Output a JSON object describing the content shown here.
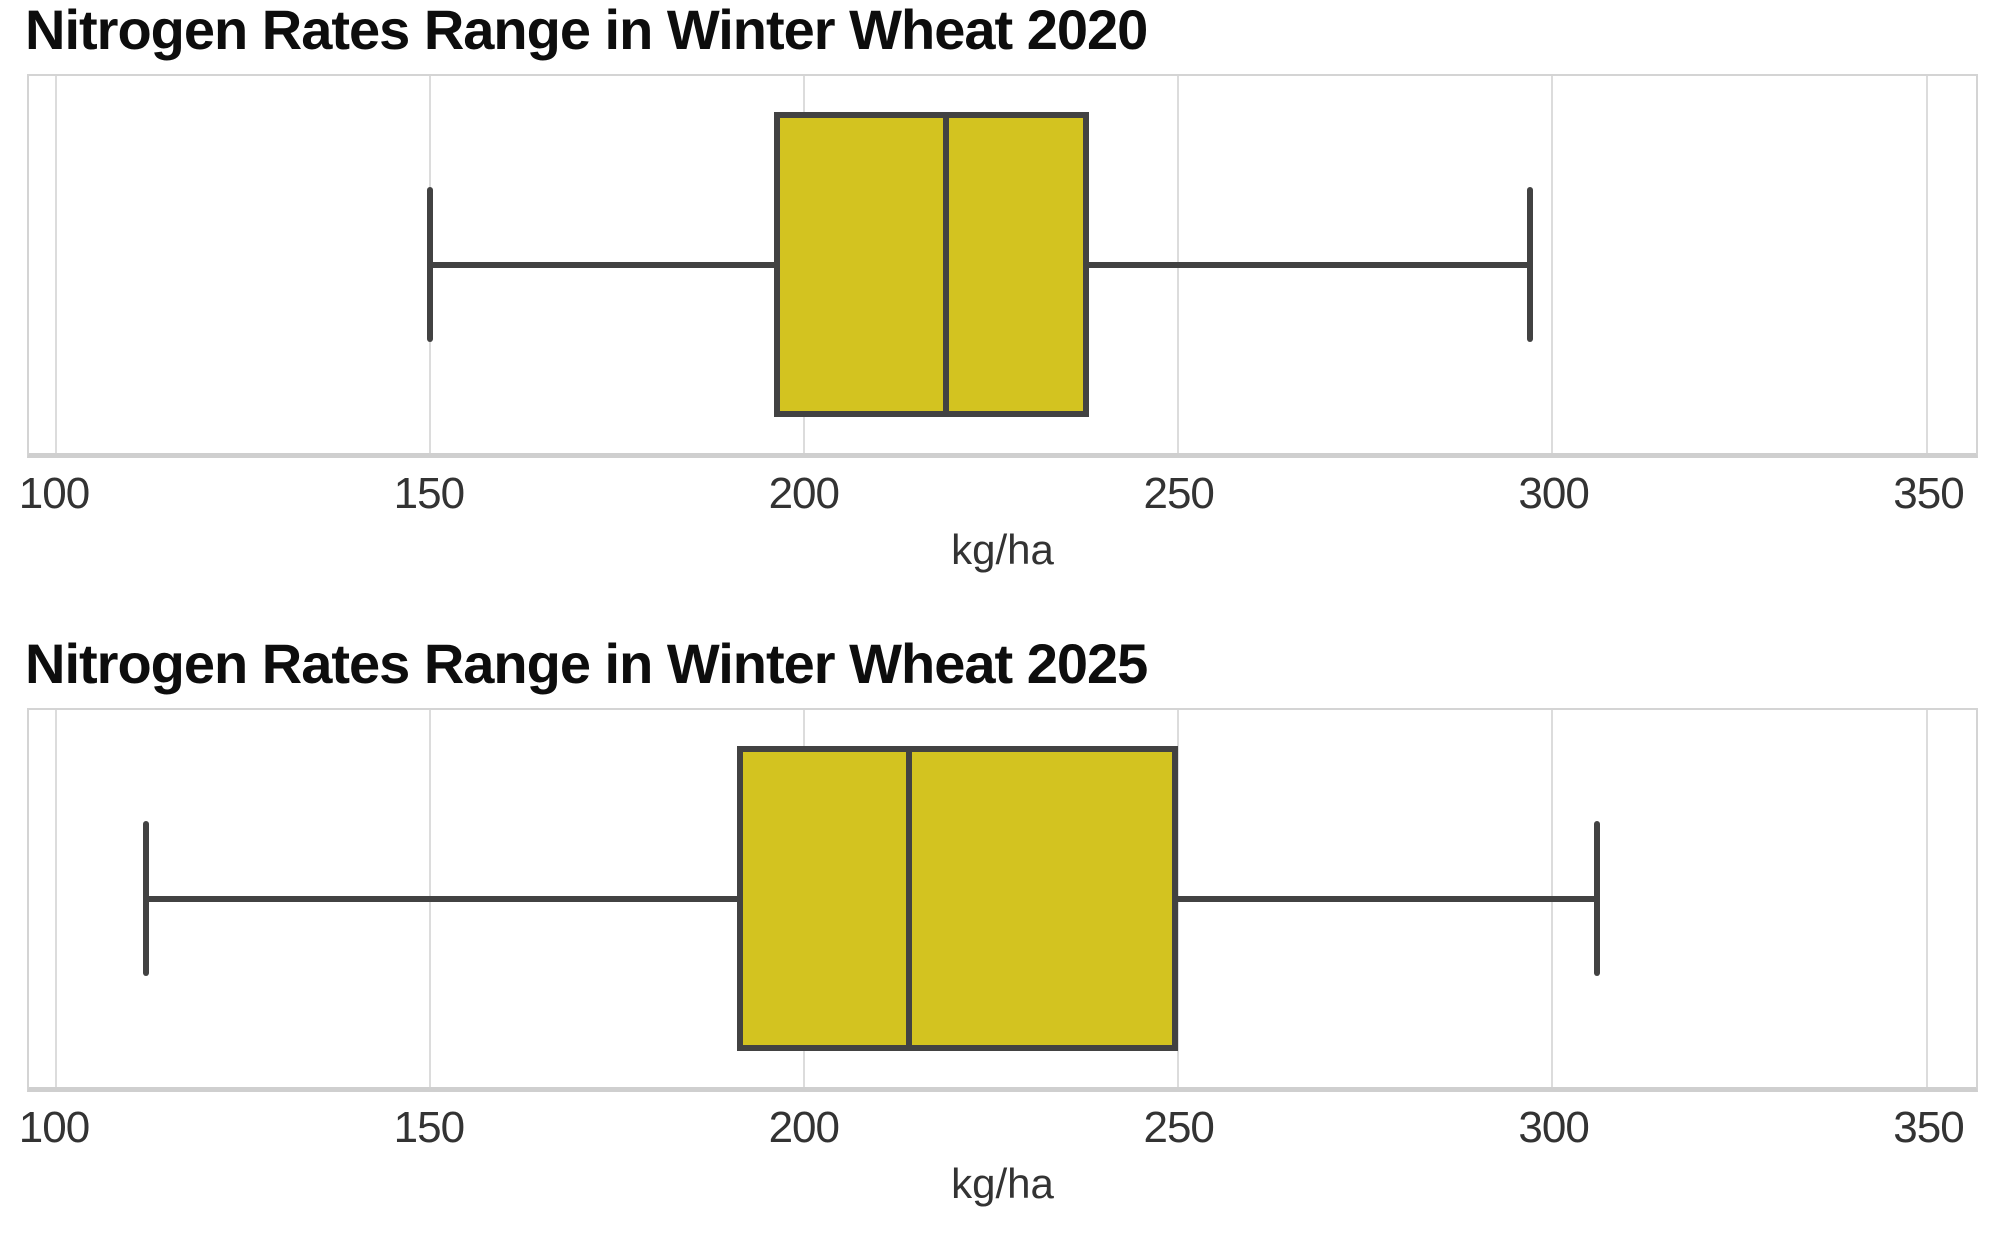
{
  "page": {
    "background": "#ffffff"
  },
  "colors": {
    "box_fill": "#d3c320",
    "box_stroke": "#424242",
    "gridline": "#dcdcdc",
    "plot_frame": "#d4d4d4",
    "axis_line": "#cfcfcf",
    "tick_text": "#333333",
    "title_text": "#0d0d0d"
  },
  "chart_data": [
    {
      "type": "box",
      "orientation": "horizontal",
      "title": "Nitrogen Rates Range in Winter Wheat 2020",
      "xlabel": "kg/ha",
      "xlim": [
        96.4,
        356.6
      ],
      "ticks": [
        100,
        150,
        200,
        250,
        300,
        350
      ],
      "tick_labels": [
        "100",
        "150",
        "200",
        "250",
        "300",
        "350"
      ],
      "grid": true,
      "legend": false,
      "stats": {
        "min": 150,
        "q1": 196,
        "median": 219,
        "q3": 238,
        "max": 297
      }
    },
    {
      "type": "box",
      "orientation": "horizontal",
      "title": "Nitrogen Rates Range in Winter Wheat 2025",
      "xlabel": "kg/ha",
      "xlim": [
        96.4,
        356.6
      ],
      "ticks": [
        100,
        150,
        200,
        250,
        300,
        350
      ],
      "tick_labels": [
        "100",
        "150",
        "200",
        "250",
        "300",
        "350"
      ],
      "grid": true,
      "legend": false,
      "stats": {
        "min": 112,
        "q1": 191,
        "median": 214,
        "q3": 250,
        "max": 306
      }
    }
  ]
}
